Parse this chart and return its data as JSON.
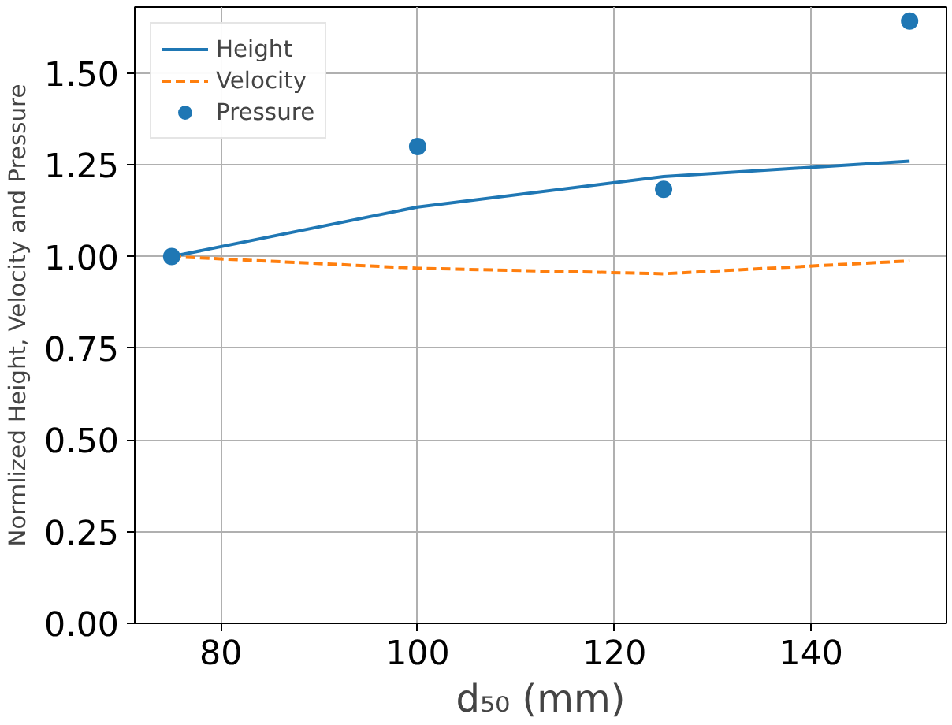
{
  "chart_data": {
    "type": "line",
    "xlabel": "d₅₀ (mm)",
    "ylabel": "Normlized Height, Velocity and Pressure",
    "x": [
      75,
      100,
      125,
      150
    ],
    "series": [
      {
        "name": "Height",
        "color": "#1f77b4",
        "values": [
          1.0,
          1.135,
          1.218,
          1.26
        ],
        "line_style": "solid"
      },
      {
        "name": "Velocity",
        "color": "#ff7f0e",
        "values": [
          1.0,
          0.968,
          0.953,
          0.988
        ],
        "line_style": "dashed"
      },
      {
        "name": "Pressure",
        "color": "#1f77b4",
        "values": [
          1.0,
          1.3,
          1.183,
          1.642
        ],
        "type": "scatter",
        "marker": "circle"
      }
    ],
    "xlim": [
      71.25,
      153.75
    ],
    "ylim": [
      0,
      1.68
    ],
    "xticks": [
      80,
      100,
      120,
      140
    ],
    "yticks": [
      {
        "value": 0,
        "label": "0.00"
      },
      {
        "value": 0.25,
        "label": "0.25"
      },
      {
        "value": 0.5,
        "label": "0.50"
      },
      {
        "value": 0.75,
        "label": "0.75"
      },
      {
        "value": 1.0,
        "label": "1.00"
      },
      {
        "value": 1.25,
        "label": "1.25"
      },
      {
        "value": 1.5,
        "label": "1.50"
      }
    ],
    "grid": true,
    "legend": "top left"
  }
}
